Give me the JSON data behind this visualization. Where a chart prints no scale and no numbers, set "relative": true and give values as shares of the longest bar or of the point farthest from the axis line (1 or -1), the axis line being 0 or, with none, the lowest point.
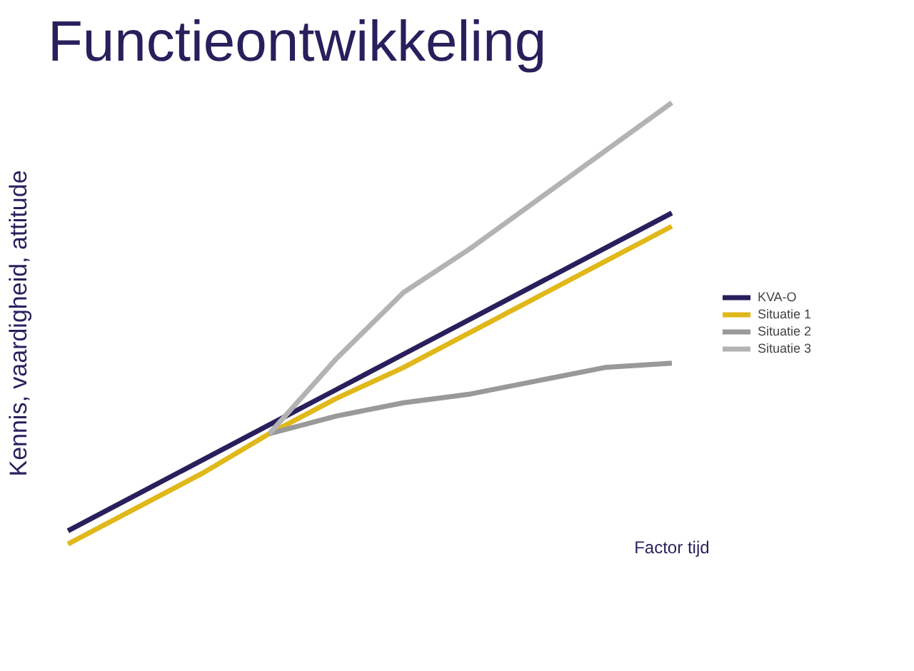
{
  "chart_data": {
    "type": "line",
    "title": "Functieontwikkeling",
    "xlabel": "Factor tijd",
    "ylabel": "Kennis, vaardigheid, attitude",
    "relative": true,
    "legend": "right",
    "marker": "none",
    "line_style": "solid",
    "categories": [
      null,
      null,
      null,
      null,
      null,
      null,
      null,
      null,
      null,
      null
    ],
    "series": [
      {
        "name": "KVA-O",
        "color": "#2a1f5c",
        "values": [
          0.03,
          0.11,
          0.19,
          0.27,
          0.35,
          0.43,
          0.51,
          0.59,
          0.67,
          0.75
        ]
      },
      {
        "name": "Situatie 1",
        "color": "#e0b81a",
        "values": [
          0,
          0.08,
          0.16,
          0.25,
          0.33,
          0.4,
          0.48,
          0.56,
          0.64,
          0.72
        ]
      },
      {
        "name": "Situatie 2",
        "color": "#999999",
        "values": [
          null,
          null,
          null,
          0.25,
          0.29,
          0.32,
          0.34,
          0.37,
          0.4,
          0.41
        ]
      },
      {
        "name": "Situatie 3",
        "color": "#b3b3b3",
        "values": [
          null,
          null,
          null,
          0.25,
          0.42,
          0.57,
          0.67,
          0.78,
          0.89,
          1
        ]
      }
    ]
  }
}
